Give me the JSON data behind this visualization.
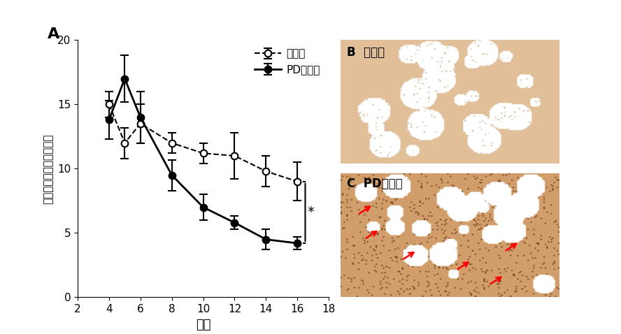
{
  "wt_x": [
    4,
    5,
    6,
    8,
    10,
    12,
    14,
    16
  ],
  "wt_y": [
    15.0,
    12.0,
    13.5,
    12.0,
    11.2,
    11.0,
    9.8,
    9.0
  ],
  "wt_yerr": [
    1.0,
    1.2,
    1.5,
    0.8,
    0.8,
    1.8,
    1.2,
    1.5
  ],
  "pd_x": [
    4,
    5,
    6,
    8,
    10,
    12,
    14,
    16
  ],
  "pd_y": [
    13.8,
    17.0,
    14.0,
    9.5,
    7.0,
    5.8,
    4.5,
    4.2
  ],
  "pd_yerr": [
    1.5,
    1.8,
    2.0,
    1.2,
    1.0,
    0.5,
    0.8,
    0.5
  ],
  "xlabel": "月齢",
  "ylabel": "行動量（移動区画／分）",
  "xlim": [
    2,
    18
  ],
  "ylim": [
    0,
    20
  ],
  "xticks": [
    2,
    4,
    6,
    8,
    10,
    12,
    14,
    16,
    18
  ],
  "yticks": [
    0,
    5,
    10,
    15,
    20
  ],
  "legend_wt": "野生型",
  "legend_pd": "PDモデル",
  "label_A": "A",
  "label_B": "B",
  "label_C": "C",
  "label_B_title": "野生型",
  "label_C_title": "PDモデル",
  "significance": "*",
  "line_color": "#000000",
  "bg_color": "#ffffff"
}
